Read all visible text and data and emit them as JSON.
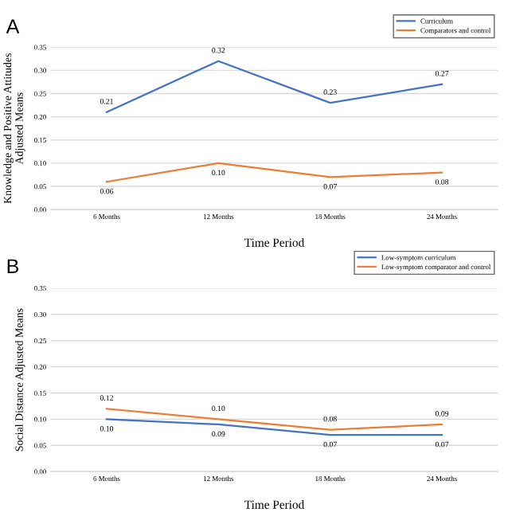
{
  "chart_data": [
    {
      "type": "line",
      "title": "A",
      "xlabel": "Time Period",
      "ylabel": "Knowledge and Positive Attitudes\nAdjusted Means",
      "categories": [
        "6 Months",
        "12 Months",
        "18 Months",
        "24 Months"
      ],
      "series": [
        {
          "name": "Curriculum",
          "color": "#4472c4",
          "values": [
            0.21,
            0.32,
            0.23,
            0.27
          ],
          "value_labels": [
            "0.21",
            "0.32",
            "0.23",
            "0.27"
          ]
        },
        {
          "name": "Comparators and control",
          "color": "#ed7d31",
          "values": [
            0.06,
            0.1,
            0.07,
            0.08
          ],
          "value_labels": [
            "0.06",
            "0.10",
            "0.07",
            "0.08"
          ]
        }
      ],
      "ylim": [
        0,
        0.35
      ],
      "yticks": [
        {
          "value": 0,
          "label": "0.00"
        },
        {
          "value": 0.05,
          "label": "0.05"
        },
        {
          "value": 0.1,
          "label": "0.10"
        },
        {
          "value": 0.15,
          "label": "0.15"
        },
        {
          "value": 0.2,
          "label": "0.20"
        },
        {
          "value": 0.25,
          "label": "0.25"
        },
        {
          "value": 0.3,
          "label": "0.30"
        },
        {
          "value": 0.35,
          "label": "0.35"
        }
      ],
      "grid": "y",
      "legend": "top right",
      "marker": "none"
    },
    {
      "type": "line",
      "title": "B",
      "xlabel": "Time Period",
      "ylabel": "Social Distance Adjusted Means",
      "categories": [
        "6 Months",
        "12 Months",
        "18 Months",
        "24 Months"
      ],
      "series": [
        {
          "name": "Low-symptom curriculum",
          "color": "#4472c4",
          "values": [
            0.1,
            0.09,
            0.07,
            0.07
          ],
          "value_labels": [
            "0.10",
            "0.09",
            "0.07",
            "0.07"
          ]
        },
        {
          "name": "Low-symptom comparator and control",
          "color": "#ed7d31",
          "values": [
            0.12,
            0.1,
            0.08,
            0.09
          ],
          "value_labels": [
            "0.12",
            "0.10",
            "0.08",
            "0.09"
          ]
        }
      ],
      "ylim": [
        0,
        0.35
      ],
      "yticks": [
        {
          "value": 0,
          "label": "0.00"
        },
        {
          "value": 0.05,
          "label": "0.05"
        },
        {
          "value": 0.1,
          "label": "0.10"
        },
        {
          "value": 0.15,
          "label": "0.15"
        },
        {
          "value": 0.2,
          "label": "0.20"
        },
        {
          "value": 0.25,
          "label": "0.25"
        },
        {
          "value": 0.3,
          "label": "0.30"
        },
        {
          "value": 0.35,
          "label": "0.35"
        }
      ],
      "grid": "y",
      "legend": "top right",
      "marker": "none"
    }
  ]
}
